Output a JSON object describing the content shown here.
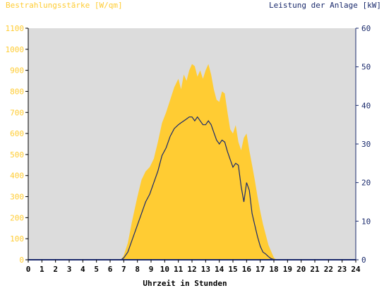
{
  "header": {
    "left_label": "Bestrahlungsstärke [W/qm]",
    "right_label": "Leistung der Anlage [kW]"
  },
  "colors": {
    "plot_bg": "#dcdcdc",
    "irradiance": "#ffcc33",
    "left_axis_text": "#ffcc33",
    "power_line": "#1a2a6c",
    "right_axis": "#1a2a6c",
    "axis": "#000000"
  },
  "chart_data": {
    "type": "area",
    "xlabel": "Uhrzeit in Stunden",
    "xlim": [
      0,
      24
    ],
    "x_ticks": [
      "0",
      "1",
      "2",
      "3",
      "4",
      "5",
      "6",
      "7",
      "8",
      "9",
      "10",
      "11",
      "12",
      "13",
      "14",
      "15",
      "16",
      "17",
      "18",
      "19",
      "20",
      "21",
      "22",
      "23",
      "24"
    ],
    "y_left": {
      "label": "Bestrahlungsstärke [W/qm]",
      "lim": [
        0,
        1100
      ],
      "ticks": [
        "0",
        "100",
        "200",
        "300",
        "400",
        "500",
        "600",
        "700",
        "800",
        "900",
        "1000",
        "1100"
      ]
    },
    "y_right": {
      "label": "Leistung der Anlage [kW]",
      "lim": [
        0,
        60
      ],
      "ticks": [
        "0",
        "10",
        "20",
        "30",
        "40",
        "50",
        "60"
      ]
    },
    "series": [
      {
        "name": "Bestrahlungsstärke [W/qm]",
        "axis": "left",
        "kind": "area",
        "x": [
          0,
          6.8,
          7.0,
          7.3,
          7.6,
          8.0,
          8.3,
          8.6,
          8.9,
          9.2,
          9.5,
          9.8,
          10.1,
          10.4,
          10.7,
          11.0,
          11.2,
          11.4,
          11.6,
          11.8,
          12.0,
          12.2,
          12.4,
          12.6,
          12.8,
          13.0,
          13.2,
          13.4,
          13.6,
          13.8,
          14.0,
          14.2,
          14.4,
          14.6,
          14.8,
          15.0,
          15.2,
          15.4,
          15.6,
          15.8,
          16.0,
          16.2,
          16.4,
          16.6,
          16.8,
          17.0,
          17.2,
          17.4,
          17.6,
          17.8,
          18.0,
          18.2,
          24
        ],
        "y": [
          0,
          0,
          20,
          80,
          180,
          300,
          380,
          420,
          440,
          480,
          560,
          650,
          700,
          760,
          820,
          860,
          810,
          880,
          850,
          900,
          930,
          920,
          870,
          900,
          860,
          900,
          930,
          880,
          810,
          760,
          750,
          800,
          790,
          700,
          620,
          600,
          640,
          560,
          520,
          580,
          600,
          520,
          450,
          380,
          300,
          230,
          170,
          120,
          70,
          40,
          10,
          0,
          0
        ]
      },
      {
        "name": "Leistung der Anlage [kW]",
        "axis": "right",
        "kind": "line",
        "x": [
          0,
          6.8,
          7.0,
          7.3,
          7.6,
          8.0,
          8.3,
          8.6,
          8.9,
          9.2,
          9.5,
          9.8,
          10.1,
          10.4,
          10.7,
          11.0,
          11.2,
          11.4,
          11.6,
          11.8,
          12.0,
          12.2,
          12.4,
          12.6,
          12.8,
          13.0,
          13.2,
          13.4,
          13.6,
          13.8,
          14.0,
          14.2,
          14.4,
          14.6,
          14.8,
          15.0,
          15.2,
          15.4,
          15.6,
          15.8,
          16.0,
          16.2,
          16.4,
          16.6,
          16.8,
          17.0,
          17.2,
          17.4,
          17.6,
          17.8,
          18.0,
          18.2,
          24
        ],
        "y": [
          0,
          0,
          0.5,
          2,
          5,
          9,
          12,
          15,
          17,
          20,
          23,
          27,
          29,
          32,
          34,
          35,
          35.5,
          36,
          36.5,
          37,
          37,
          36,
          37,
          36,
          35,
          35,
          36,
          35,
          33,
          31,
          30,
          31,
          30.5,
          28,
          26,
          24,
          25,
          24.5,
          19,
          15,
          20,
          18,
          12,
          9,
          6,
          3.5,
          2,
          1.5,
          0.8,
          0.3,
          0.1,
          0,
          0
        ]
      }
    ],
    "grid": false,
    "legend": "none"
  }
}
